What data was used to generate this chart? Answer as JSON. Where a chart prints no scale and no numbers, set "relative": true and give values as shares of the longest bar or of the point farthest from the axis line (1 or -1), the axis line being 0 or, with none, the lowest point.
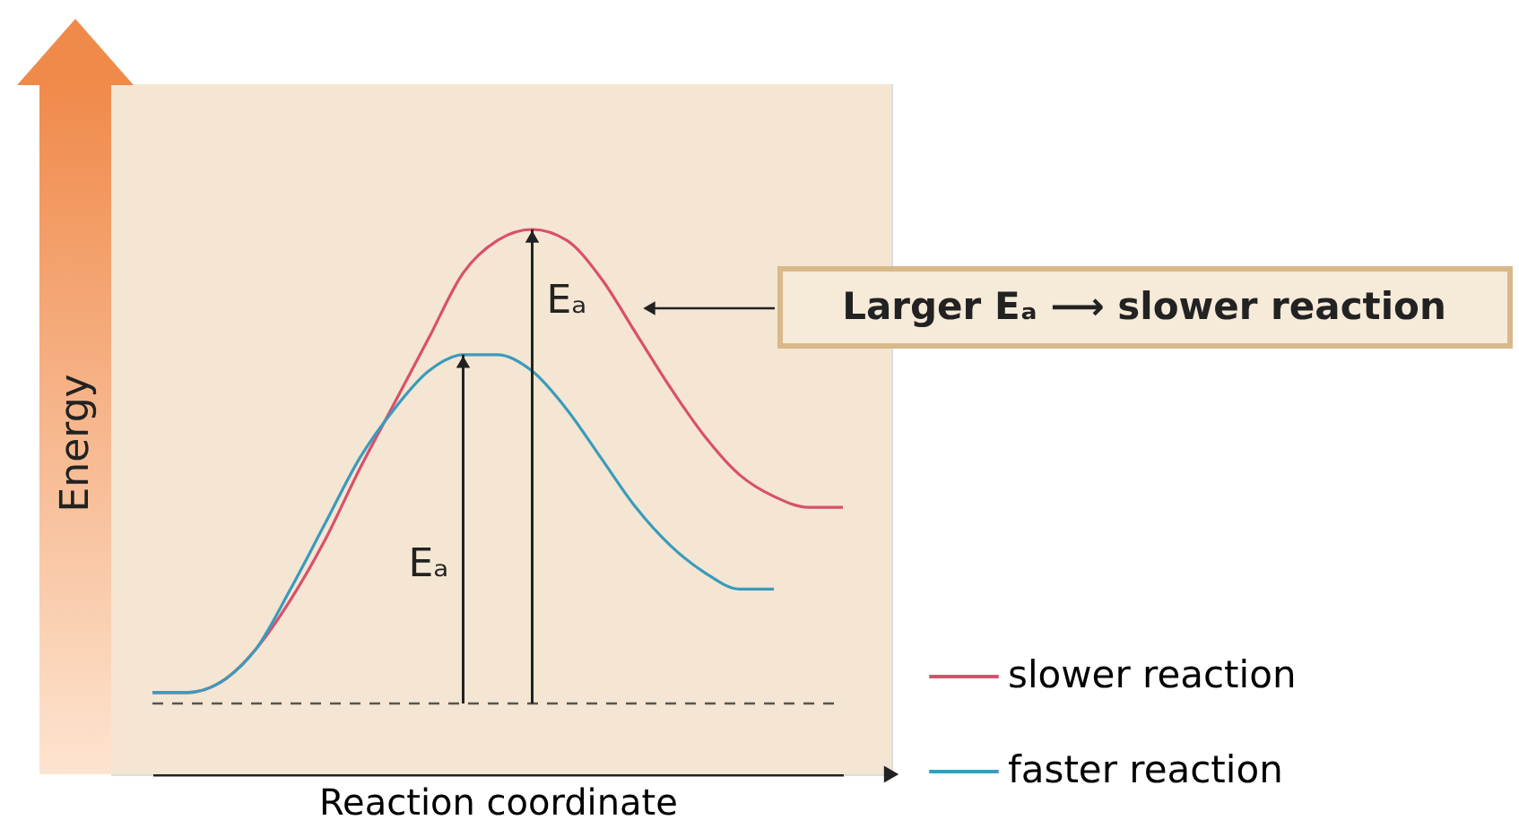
{
  "chart_data": {
    "type": "line",
    "relative": true,
    "xlabel": "Reaction coordinate",
    "ylabel": "Energy",
    "legend": "bottom right",
    "line_style": "solid",
    "categories": [
      null,
      null,
      null,
      null,
      null,
      null,
      null,
      null,
      null,
      null,
      null,
      null,
      null,
      null,
      null,
      null,
      null,
      null,
      null,
      null,
      null
    ],
    "series": [
      {
        "name": "slower reaction",
        "color": "#d9506a",
        "values": [
          0.15,
          0.15,
          0.17,
          0.23,
          0.32,
          0.43,
          0.56,
          0.68,
          0.8,
          0.92,
          0.98,
          1,
          0.98,
          0.91,
          0.81,
          0.71,
          0.62,
          0.55,
          0.51,
          0.49,
          0.49
        ]
      },
      {
        "name": "faster reaction",
        "color": "#3a9bbd",
        "values": [
          0.15,
          0.15,
          0.17,
          0.23,
          0.34,
          0.46,
          0.58,
          0.67,
          0.74,
          0.77,
          0.77,
          0.74,
          0.67,
          0.58,
          0.49,
          0.42,
          0.37,
          0.34,
          0.34,
          null,
          null
        ]
      }
    ],
    "ref_lines": [
      {
        "axis": "y",
        "value": 0.13,
        "color": "#555555",
        "line_style": "dashed"
      }
    ],
    "annotations": [
      "Eₐ",
      "Eₐ",
      "Larger Eₐ ⟶ slower reaction"
    ]
  }
}
